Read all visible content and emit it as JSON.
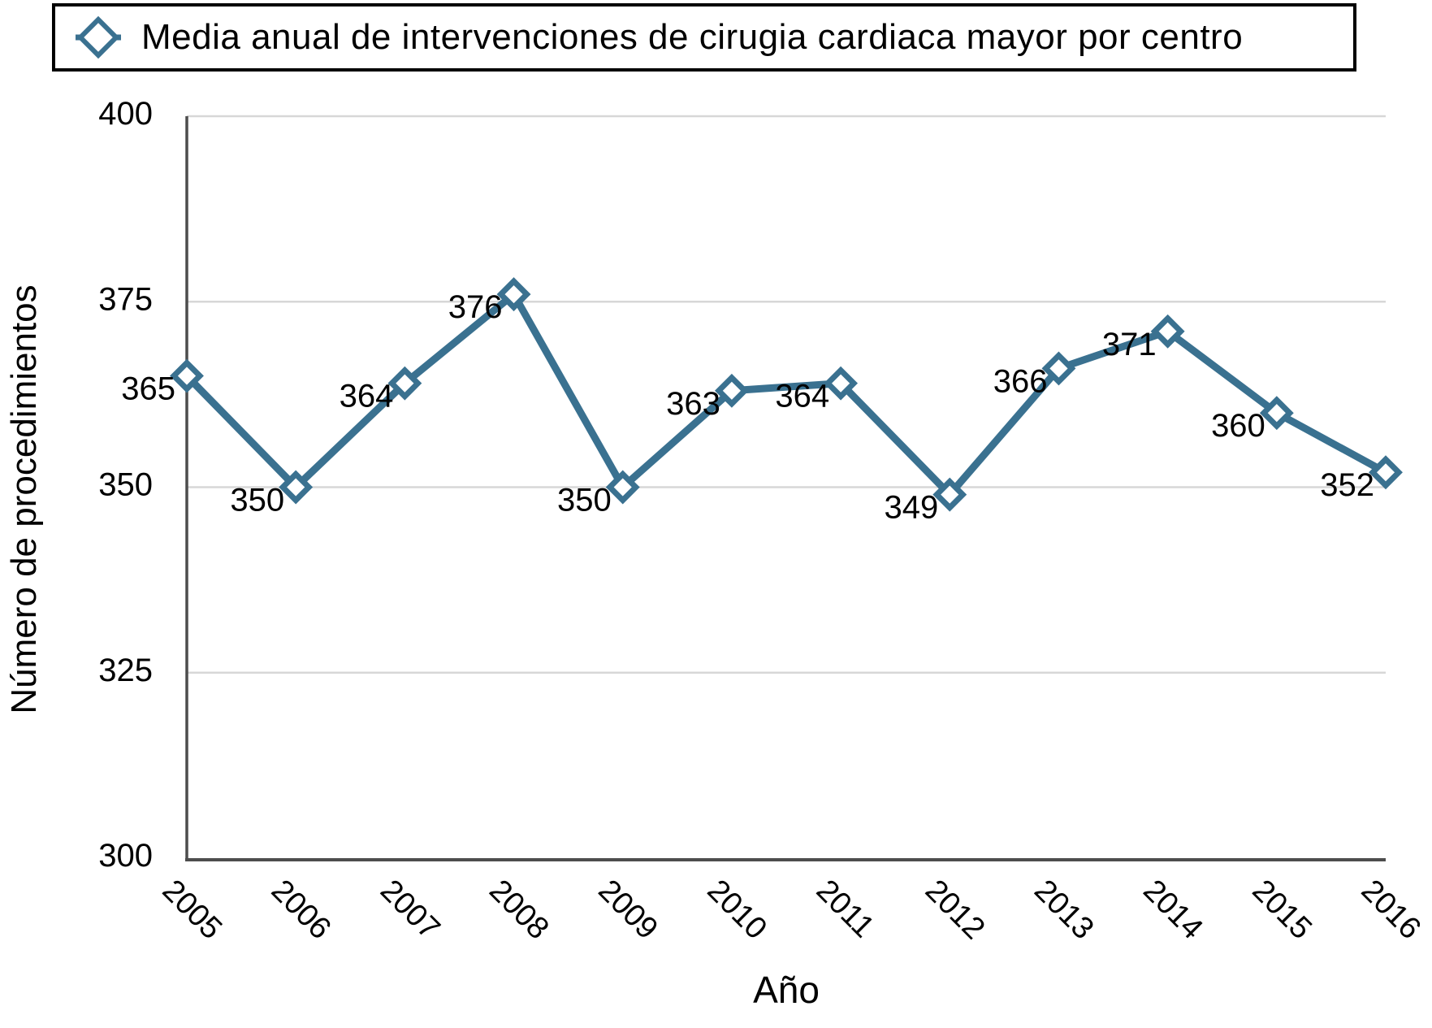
{
  "legend": {
    "label": "Media anual de intervenciones de cirugia cardiaca mayor por centro",
    "marker_icon": "diamond-outline-with-line"
  },
  "colors": {
    "series": "#3A7190",
    "marker_fill": "#ffffff",
    "gridline": "#d7d7d7",
    "axis": "#4d4d4d",
    "text": "#000000",
    "background": "#ffffff",
    "legend_border": "#000000"
  },
  "chart_data": {
    "type": "line",
    "categories": [
      "2005",
      "2006",
      "2007",
      "2008",
      "2009",
      "2010",
      "2011",
      "2012",
      "2013",
      "2014",
      "2015",
      "2016"
    ],
    "series": [
      {
        "name": "Media anual de intervenciones de cirugia cardiaca mayor por centro",
        "values": [
          365,
          350,
          364,
          376,
          350,
          363,
          364,
          349,
          366,
          371,
          360,
          352
        ]
      }
    ],
    "title": "",
    "xlabel": "Año",
    "ylabel": "Número de procedimientos",
    "ylim": [
      300,
      400
    ],
    "yticks": [
      300,
      325,
      350,
      375,
      400
    ],
    "grid": true,
    "legend_position": "top",
    "marker": "diamond",
    "data_labels": true,
    "x_tick_rotation_deg": 45
  }
}
